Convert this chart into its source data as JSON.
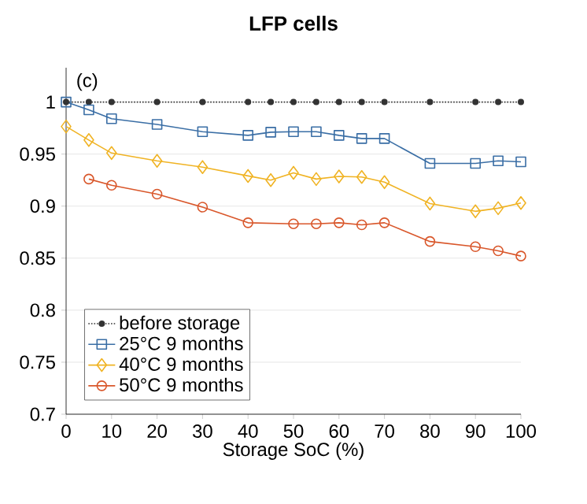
{
  "chart_data": {
    "type": "line",
    "title": "LFP cells",
    "xlabel": "Storage SoC (%)",
    "annotations": [
      "(c)"
    ],
    "x": [
      0,
      5,
      10,
      20,
      30,
      40,
      45,
      50,
      55,
      60,
      65,
      70,
      80,
      90,
      95,
      100
    ],
    "series": [
      {
        "name": "before storage",
        "color": "#333333",
        "line_style": "dotted",
        "marker": "circle",
        "values": [
          1,
          1,
          1,
          1,
          1,
          1,
          1,
          1,
          1,
          1,
          1,
          1,
          1,
          1,
          1,
          1
        ]
      },
      {
        "name": "25°C  9 months",
        "color": "#3a6ea5",
        "line_style": "solid",
        "marker": "square",
        "values": [
          1.0,
          0.9925,
          0.984,
          0.9785,
          0.9715,
          0.968,
          0.971,
          0.9715,
          0.9715,
          0.968,
          0.965,
          0.965,
          0.941,
          0.941,
          0.9435,
          0.9425
        ]
      },
      {
        "name": "40°C  9 months",
        "color": "#f0b323",
        "line_style": "solid",
        "marker": "diamond",
        "values": [
          0.9765,
          0.9635,
          0.951,
          0.9435,
          0.9375,
          0.929,
          0.925,
          0.932,
          0.926,
          0.9285,
          0.928,
          0.923,
          0.9025,
          0.895,
          0.898,
          0.903
        ]
      },
      {
        "name": "50°C  9 months",
        "color": "#d9572b",
        "line_style": "solid",
        "marker": "circle",
        "values": [
          null,
          0.926,
          0.92,
          0.9115,
          0.899,
          0.884,
          null,
          0.883,
          0.883,
          0.884,
          0.882,
          0.884,
          0.866,
          0.861,
          0.857,
          0.852
        ]
      }
    ],
    "xlim": [
      0,
      100
    ],
    "ylim": [
      0.7,
      1.033
    ],
    "xticks": [
      0,
      10,
      20,
      30,
      40,
      50,
      60,
      70,
      80,
      90,
      100
    ],
    "yticks": [
      0.7,
      0.75,
      0.8,
      0.85,
      0.9,
      0.95,
      1
    ],
    "grid": "y",
    "legend": "bottom left"
  }
}
